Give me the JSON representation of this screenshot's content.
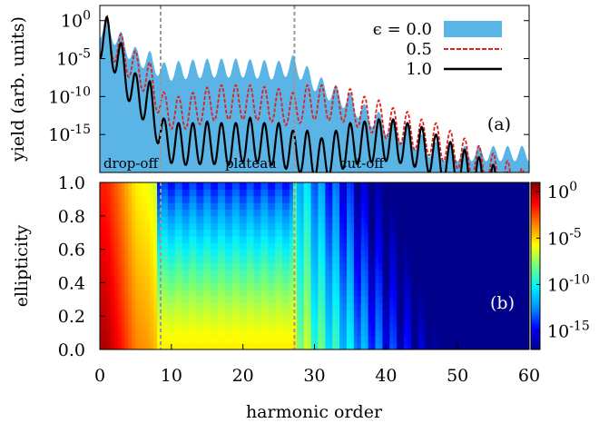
{
  "chart_data": [
    {
      "panel": "(a)",
      "type": "area",
      "ylabel": "yield (arb. units)",
      "xlim": [
        0,
        60
      ],
      "yscale": "log",
      "ylim_exp": [
        -20,
        2
      ],
      "ytick_labels": [
        {
          "base": "10",
          "exp": "0",
          "value_exp": 0
        },
        {
          "base": "10",
          "exp": "-5",
          "value_exp": -5
        },
        {
          "base": "10",
          "exp": "-10",
          "value_exp": -10
        },
        {
          "base": "10",
          "exp": "-15",
          "value_exp": -15
        }
      ],
      "region_labels": [
        {
          "text": "drop-off",
          "x": 0.5
        },
        {
          "text": "plateau",
          "x": 17.5
        },
        {
          "text": "cut-off",
          "x": 33.5
        }
      ],
      "vlines_x": [
        8.5,
        27.2
      ],
      "legend_title": "ϵ = 0.0",
      "series": [
        {
          "name": "0.0",
          "style": "filled area",
          "color": "#5ab4e5",
          "peaks_log10": [
            [
              1,
              0.2
            ],
            [
              3,
              -1.5
            ],
            [
              5,
              -3.5
            ],
            [
              7,
              -4
            ],
            [
              9,
              -5.5
            ],
            [
              12,
              -5.2
            ],
            [
              15,
              -5
            ],
            [
              18,
              -5
            ],
            [
              20,
              -5
            ],
            [
              23,
              -5.2
            ],
            [
              25,
              -5.3
            ],
            [
              27,
              -4.5
            ],
            [
              29,
              -6
            ],
            [
              31,
              -7.5
            ],
            [
              33,
              -8.5
            ],
            [
              35,
              -9.5
            ],
            [
              37,
              -11
            ],
            [
              39,
              -12
            ],
            [
              41,
              -13
            ],
            [
              43,
              -14
            ],
            [
              45,
              -15
            ],
            [
              47,
              -16
            ],
            [
              49,
              -17
            ],
            [
              51,
              -17.5
            ],
            [
              53,
              -18
            ],
            [
              55,
              -18.8
            ],
            [
              57,
              -19.3
            ],
            [
              59,
              -19.8
            ]
          ],
          "baseline_log10": -16.5
        },
        {
          "name": "0.5",
          "style": "dashed",
          "color": "#dd2222",
          "peaks_log10": [
            [
              1,
              0
            ],
            [
              3,
              -1.8
            ],
            [
              5,
              -4
            ],
            [
              7,
              -5.5
            ],
            [
              9,
              -9.5
            ],
            [
              11,
              -10
            ],
            [
              13,
              -9.5
            ],
            [
              15,
              -8.8
            ],
            [
              17,
              -8.5
            ],
            [
              19,
              -8.5
            ],
            [
              21,
              -8.5
            ],
            [
              23,
              -8.7
            ],
            [
              25,
              -9
            ],
            [
              27,
              -9.5
            ],
            [
              29,
              -8.5
            ],
            [
              31,
              -8.5
            ],
            [
              33,
              -8.7
            ],
            [
              35,
              -9
            ],
            [
              37,
              -10
            ],
            [
              39,
              -10.5
            ],
            [
              41,
              -11.5
            ],
            [
              43,
              -12
            ],
            [
              45,
              -13
            ],
            [
              47,
              -13.5
            ],
            [
              49,
              -14.5
            ],
            [
              51,
              -15.5
            ],
            [
              53,
              -16.5
            ],
            [
              55,
              -17.5
            ],
            [
              57,
              -18.5
            ],
            [
              59,
              -19.5
            ]
          ]
        },
        {
          "name": "1.0",
          "style": "solid",
          "color": "#000000",
          "peaks_log10": [
            [
              1,
              0.5
            ],
            [
              3,
              -3
            ],
            [
              5,
              -7
            ],
            [
              7,
              -8
            ],
            [
              9,
              -13
            ],
            [
              11,
              -13.5
            ],
            [
              13,
              -13.5
            ],
            [
              15,
              -13.3
            ],
            [
              17,
              -13.5
            ],
            [
              19,
              -13.5
            ],
            [
              21,
              -12.8
            ],
            [
              23,
              -13.5
            ],
            [
              25,
              -13.5
            ],
            [
              27,
              -14.5
            ],
            [
              29,
              -14.5
            ],
            [
              31,
              -15.5
            ],
            [
              33,
              -14.5
            ],
            [
              35,
              -13.5
            ],
            [
              37,
              -13.3
            ],
            [
              39,
              -13
            ],
            [
              41,
              -13
            ],
            [
              43,
              -13.5
            ],
            [
              45,
              -14
            ],
            [
              47,
              -15
            ],
            [
              49,
              -16
            ],
            [
              51,
              -17
            ],
            [
              53,
              -18
            ],
            [
              55,
              -19
            ],
            [
              57,
              -20
            ],
            [
              59,
              -20.5
            ]
          ]
        }
      ]
    },
    {
      "panel": "(b)",
      "type": "heatmap",
      "xlabel": "harmonic order",
      "ylabel": "ellipticity",
      "xlim": [
        0,
        60
      ],
      "ylim": [
        0,
        1
      ],
      "xticks": [
        "0",
        "10",
        "20",
        "30",
        "40",
        "50",
        "60"
      ],
      "xtick_values": [
        0,
        10,
        20,
        30,
        40,
        50,
        60
      ],
      "yticks": [
        "0.0",
        "0.2",
        "0.4",
        "0.6",
        "0.8",
        "1.0"
      ],
      "ytick_values": [
        0,
        0.2,
        0.4,
        0.6,
        0.8,
        1.0
      ],
      "colorbar": {
        "scale": "log",
        "range_exp": [
          -17,
          1
        ],
        "tick_labels": [
          {
            "base": "10",
            "exp": "0",
            "value_exp": 0
          },
          {
            "base": "10",
            "exp": "-5",
            "value_exp": -5
          },
          {
            "base": "10",
            "exp": "-10",
            "value_exp": -10
          },
          {
            "base": "10",
            "exp": "-15",
            "value_exp": -15
          }
        ],
        "colors": [
          "#00008a",
          "#0000ff",
          "#0090ff",
          "#00f0ff",
          "#70ff80",
          "#ffff00",
          "#ff8000",
          "#ff0000",
          "#800000"
        ]
      },
      "vlines_x": [
        8.5,
        27.2
      ]
    }
  ]
}
